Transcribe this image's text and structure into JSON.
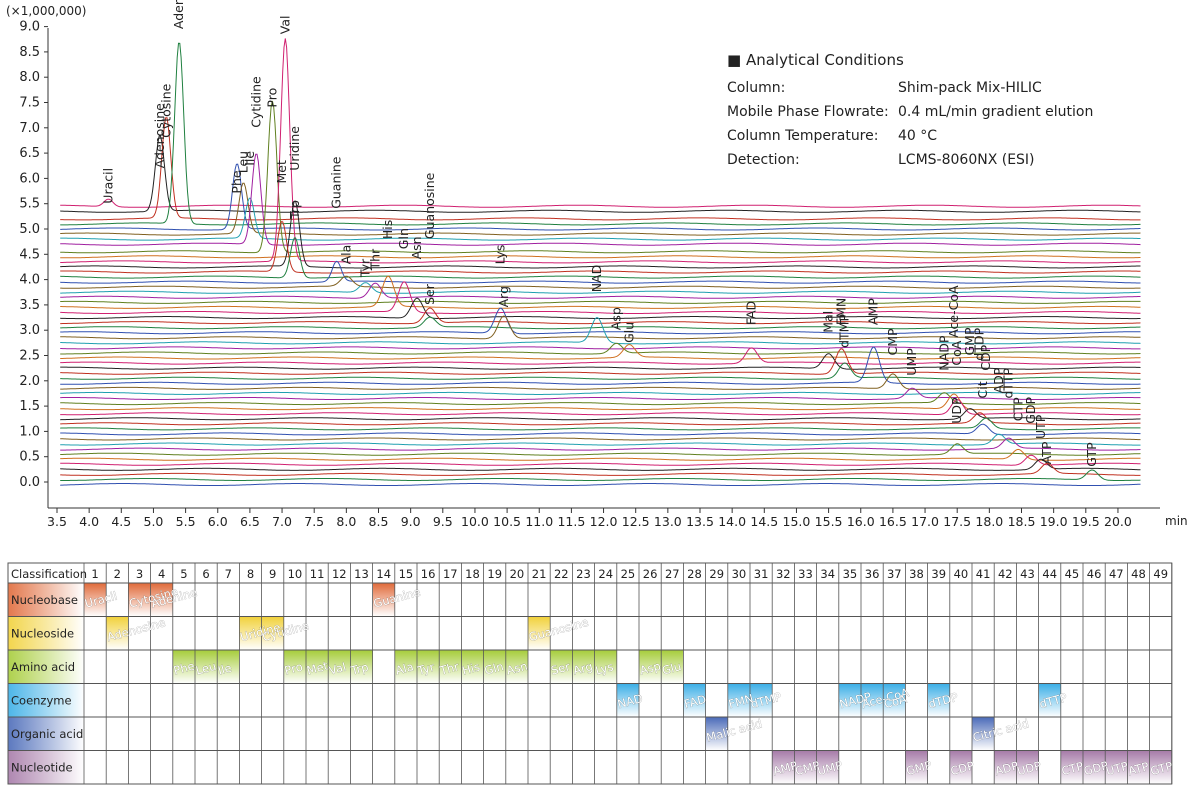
{
  "chart_data": {
    "type": "line",
    "chart_kind": "LC-MS/MS chromatogram (overlaid MRM traces)",
    "y_multiplier_label": "(×1,000,000)",
    "yticks": [
      "9.0",
      "8.5",
      "8.0",
      "7.5",
      "7.0",
      "6.5",
      "6.0",
      "5.5",
      "5.0",
      "4.5",
      "4.0",
      "3.5",
      "3.0",
      "2.5",
      "2.0",
      "1.5",
      "1.0",
      "0.5",
      "0.0"
    ],
    "xticks": [
      "3.5",
      "4.0",
      "4.5",
      "5.0",
      "5.5",
      "6.0",
      "6.5",
      "7.0",
      "7.5",
      "8.0",
      "8.5",
      "9.0",
      "9.5",
      "10.0",
      "10.5",
      "11.0",
      "11.5",
      "12.0",
      "12.5",
      "13.0",
      "13.5",
      "14.0",
      "14.5",
      "15.0",
      "15.5",
      "16.0",
      "16.5",
      "17.0",
      "17.5",
      "18.0",
      "18.5",
      "19.0",
      "19.5",
      "20.0"
    ],
    "xunit": "min",
    "xlim": [
      3.5,
      20.4
    ],
    "ylim": [
      -0.25,
      9.0
    ],
    "baselines": [
      5.45,
      5.35,
      5.2,
      5.1,
      5.0,
      4.9,
      4.8,
      4.7,
      4.55,
      4.45,
      4.35,
      4.25,
      4.15,
      4.05,
      3.95,
      3.85,
      3.75,
      3.65,
      3.55,
      3.45,
      3.35,
      3.25,
      3.15,
      3.05,
      2.95,
      2.85,
      2.75,
      2.65,
      2.55,
      2.45,
      2.35,
      2.25,
      2.15,
      2.05,
      1.95,
      1.85,
      1.75,
      1.65,
      1.55,
      1.45,
      1.35,
      1.25,
      1.15,
      1.05,
      0.95,
      0.85,
      0.75,
      0.65,
      0.55,
      0.45,
      0.35,
      0.25,
      0.15,
      0.05,
      -0.05
    ],
    "trace_colors": [
      "#d02070",
      "#222222",
      "#c03020",
      "#208040",
      "#3050b0",
      "#806020",
      "#20a0b0",
      "#a020a0",
      "#608020",
      "#d07020"
    ],
    "peaks": [
      {
        "name": "Uracil",
        "rt": 4.3,
        "h": 0.15,
        "label_y": 5.5,
        "color": "#d02070"
      },
      {
        "name": "Adenosine",
        "rt": 5.1,
        "h": 1.5,
        "label_y": 6.2,
        "color": "#3050b0"
      },
      {
        "name": "Cytosine",
        "rt": 5.2,
        "h": 2.0,
        "label_y": 6.8,
        "color": "#c03020"
      },
      {
        "name": "Adenine",
        "rt": 5.4,
        "h": 3.6,
        "label_y": 8.95,
        "color": "#208040"
      },
      {
        "name": "Phe",
        "rt": 6.3,
        "h": 1.3,
        "label_y": 5.7,
        "color": "#806020"
      },
      {
        "name": "Leu",
        "rt": 6.4,
        "h": 1.0,
        "label_y": 6.1,
        "color": "#3050b0"
      },
      {
        "name": "Ile",
        "rt": 6.5,
        "h": 0.8,
        "label_y": 6.25,
        "color": "#a020a0"
      },
      {
        "name": "Cytidine",
        "rt": 6.6,
        "h": 1.8,
        "label_y": 7.0,
        "color": "#3050b0"
      },
      {
        "name": "Pro",
        "rt": 6.85,
        "h": 3.0,
        "label_y": 7.4,
        "color": "#20a0b0"
      },
      {
        "name": "Val",
        "rt": 7.05,
        "h": 4.4,
        "label_y": 8.85,
        "color": "#222222"
      },
      {
        "name": "Uridine",
        "rt": 7.2,
        "h": 1.3,
        "label_y": 6.15,
        "color": "#608020"
      },
      {
        "name": "Met",
        "rt": 7.0,
        "h": 1.0,
        "label_y": 5.9,
        "color": "#c03020"
      },
      {
        "name": "Trp",
        "rt": 7.2,
        "h": 0.8,
        "label_y": 5.2,
        "color": "#d02070"
      },
      {
        "name": "Guanine",
        "rt": 7.85,
        "h": 0.4,
        "label_y": 5.4,
        "color": "#3050b0"
      },
      {
        "name": "Ala",
        "rt": 8.0,
        "h": 0.2,
        "label_y": 4.3,
        "color": "#806020"
      },
      {
        "name": "Tyr",
        "rt": 8.3,
        "h": 0.2,
        "label_y": 4.05,
        "color": "#608020"
      },
      {
        "name": "Thr",
        "rt": 8.45,
        "h": 0.3,
        "label_y": 4.2,
        "color": "#806020"
      },
      {
        "name": "His",
        "rt": 8.65,
        "h": 0.6,
        "label_y": 4.8,
        "color": "#20a0b0"
      },
      {
        "name": "Gln",
        "rt": 8.9,
        "h": 0.6,
        "label_y": 4.6,
        "color": "#d07020"
      },
      {
        "name": "Asn",
        "rt": 9.1,
        "h": 0.4,
        "label_y": 4.4,
        "color": "#c03020"
      },
      {
        "name": "Guanosine",
        "rt": 9.3,
        "h": 0.3,
        "label_y": 4.8,
        "color": "#3050b0"
      },
      {
        "name": "Ser",
        "rt": 9.3,
        "h": 0.2,
        "label_y": 3.5,
        "color": "#608020"
      },
      {
        "name": "Lys",
        "rt": 10.4,
        "h": 0.5,
        "label_y": 4.3,
        "color": "#c03020"
      },
      {
        "name": "Arg",
        "rt": 10.45,
        "h": 0.45,
        "label_y": 3.45,
        "color": "#222222"
      },
      {
        "name": "NAD",
        "rt": 11.9,
        "h": 0.5,
        "label_y": 3.75,
        "color": "#d02070"
      },
      {
        "name": "Asp",
        "rt": 12.2,
        "h": 0.2,
        "label_y": 3.0,
        "color": "#806020"
      },
      {
        "name": "Glu",
        "rt": 12.4,
        "h": 0.25,
        "label_y": 2.75,
        "color": "#222222"
      },
      {
        "name": "FAD",
        "rt": 14.3,
        "h": 0.3,
        "label_y": 3.1,
        "color": "#208040"
      },
      {
        "name": "Mal",
        "rt": 15.5,
        "h": 0.3,
        "label_y": 2.95,
        "color": "#806020"
      },
      {
        "name": "FMN",
        "rt": 15.7,
        "h": 0.5,
        "label_y": 3.1,
        "color": "#d07020"
      },
      {
        "name": "dTMP",
        "rt": 15.75,
        "h": 0.3,
        "label_y": 2.65,
        "color": "#608020"
      },
      {
        "name": "AMP",
        "rt": 16.2,
        "h": 0.7,
        "label_y": 3.1,
        "color": "#208040"
      },
      {
        "name": "CMP",
        "rt": 16.5,
        "h": 0.3,
        "label_y": 2.5,
        "color": "#3050b0"
      },
      {
        "name": "UMP",
        "rt": 16.8,
        "h": 0.2,
        "label_y": 2.1,
        "color": "#a020a0"
      },
      {
        "name": "NADP",
        "rt": 17.3,
        "h": 0.2,
        "label_y": 2.2,
        "color": "#3050b0"
      },
      {
        "name": "Ace-CoA",
        "rt": 17.45,
        "h": 0.3,
        "label_y": 2.85,
        "color": "#20a0b0"
      },
      {
        "name": "CoA",
        "rt": 17.5,
        "h": 0.3,
        "label_y": 2.3,
        "color": "#20a0b0"
      },
      {
        "name": "GMP",
        "rt": 17.7,
        "h": 0.2,
        "label_y": 2.5,
        "color": "#d02070"
      },
      {
        "name": "dTDP",
        "rt": 17.85,
        "h": 0.2,
        "label_y": 2.4,
        "color": "#806020"
      },
      {
        "name": "CDP",
        "rt": 17.95,
        "h": 0.2,
        "label_y": 2.2,
        "color": "#222222"
      },
      {
        "name": "Cit",
        "rt": 17.9,
        "h": 0.2,
        "label_y": 1.65,
        "color": "#608020"
      },
      {
        "name": "ADP",
        "rt": 18.15,
        "h": 0.2,
        "label_y": 1.75,
        "color": "#806020"
      },
      {
        "name": "dTTP",
        "rt": 18.3,
        "h": 0.2,
        "label_y": 1.65,
        "color": "#20a0b0"
      },
      {
        "name": "UDP",
        "rt": 17.5,
        "h": 0.2,
        "label_y": 1.15,
        "color": "#222222"
      },
      {
        "name": "CTP",
        "rt": 18.45,
        "h": 0.2,
        "label_y": 1.2,
        "color": "#c03020"
      },
      {
        "name": "GDP",
        "rt": 18.65,
        "h": 0.2,
        "label_y": 1.15,
        "color": "#3050b0"
      },
      {
        "name": "UTP",
        "rt": 18.8,
        "h": 0.2,
        "label_y": 0.85,
        "color": "#806020"
      },
      {
        "name": "ATP",
        "rt": 18.9,
        "h": 0.2,
        "label_y": 0.35,
        "color": "#d07020"
      },
      {
        "name": "GTP",
        "rt": 19.6,
        "h": 0.2,
        "label_y": 0.3,
        "color": "#222222"
      }
    ]
  },
  "conditions": {
    "title": "■ Analytical Conditions",
    "rows": [
      {
        "k": "Column:",
        "v": "Shim-pack Mix-HILIC"
      },
      {
        "k": "Mobile Phase Flowrate:",
        "v": "0.4 mL/min gradient elution"
      },
      {
        "k": "Column Temperature:",
        "v": "40 °C"
      },
      {
        "k": "Detection:",
        "v": "LCMS-8060NX (ESI)"
      }
    ]
  },
  "table": {
    "header": "Classification",
    "columns": [
      "1",
      "2",
      "3",
      "4",
      "5",
      "6",
      "7",
      "8",
      "9",
      "10",
      "11",
      "12",
      "13",
      "14",
      "15",
      "16",
      "17",
      "18",
      "19",
      "20",
      "21",
      "22",
      "23",
      "24",
      "25",
      "26",
      "27",
      "28",
      "29",
      "30",
      "31",
      "32",
      "33",
      "34",
      "35",
      "36",
      "37",
      "38",
      "39",
      "40",
      "41",
      "42",
      "43",
      "44",
      "45",
      "46",
      "47",
      "48",
      "49"
    ],
    "rows": [
      {
        "label": "Nucleobase",
        "color": "#e06a3a",
        "items": [
          {
            "col": 1,
            "text": "Uracil"
          },
          {
            "col": 3,
            "text": "Cytosine"
          },
          {
            "col": 4,
            "text": "Adenine"
          },
          {
            "col": 14,
            "text": "Guanine"
          }
        ]
      },
      {
        "label": "Nucleoside",
        "color": "#f1d13a",
        "items": [
          {
            "col": 2,
            "text": "Adenosine"
          },
          {
            "col": 8,
            "text": "Uridine"
          },
          {
            "col": 9,
            "text": "Cytidine"
          },
          {
            "col": 21,
            "text": "Guanosine"
          }
        ]
      },
      {
        "label": "Amino acid",
        "color": "#a6cc3a",
        "items": [
          {
            "col": 5,
            "text": "Phe"
          },
          {
            "col": 6,
            "text": "Leu"
          },
          {
            "col": 7,
            "text": "Ile"
          },
          {
            "col": 10,
            "text": "Pro"
          },
          {
            "col": 11,
            "text": "Met"
          },
          {
            "col": 12,
            "text": "Val"
          },
          {
            "col": 13,
            "text": "Trp"
          },
          {
            "col": 15,
            "text": "Ala"
          },
          {
            "col": 16,
            "text": "Tyr"
          },
          {
            "col": 17,
            "text": "Thr"
          },
          {
            "col": 18,
            "text": "His"
          },
          {
            "col": 19,
            "text": "Gln"
          },
          {
            "col": 20,
            "text": "Asn"
          },
          {
            "col": 22,
            "text": "Ser"
          },
          {
            "col": 23,
            "text": "Arg"
          },
          {
            "col": 24,
            "text": "Lys"
          },
          {
            "col": 26,
            "text": "Asp"
          },
          {
            "col": 27,
            "text": "Glu"
          }
        ]
      },
      {
        "label": "Coenzyme",
        "color": "#3aaee6",
        "items": [
          {
            "col": 25,
            "text": "NAD"
          },
          {
            "col": 28,
            "text": "FAD"
          },
          {
            "col": 30,
            "text": "FMN"
          },
          {
            "col": 31,
            "text": "dTMP"
          },
          {
            "col": 35,
            "text": "NADP"
          },
          {
            "col": 36,
            "text": "Ace-CoA"
          },
          {
            "col": 37,
            "text": "CoA"
          },
          {
            "col": 39,
            "text": "dTDP"
          },
          {
            "col": 44,
            "text": "dTTP"
          }
        ]
      },
      {
        "label": "Organic acid",
        "color": "#4a6ab8",
        "items": [
          {
            "col": 29,
            "text": "Malic acid"
          },
          {
            "col": 41,
            "text": "Citric acid"
          }
        ]
      },
      {
        "label": "Nucleotide",
        "color": "#a67aa8",
        "items": [
          {
            "col": 32,
            "text": "AMP"
          },
          {
            "col": 33,
            "text": "CMP"
          },
          {
            "col": 34,
            "text": "UMP"
          },
          {
            "col": 38,
            "text": "GMP"
          },
          {
            "col": 40,
            "text": "CDP"
          },
          {
            "col": 42,
            "text": "ADP"
          },
          {
            "col": 43,
            "text": "UDP"
          },
          {
            "col": 45,
            "text": "CTP"
          },
          {
            "col": 46,
            "text": "GDP"
          },
          {
            "col": 47,
            "text": "UTP"
          },
          {
            "col": 48,
            "text": "ATP"
          },
          {
            "col": 49,
            "text": "GTP"
          }
        ]
      }
    ]
  }
}
